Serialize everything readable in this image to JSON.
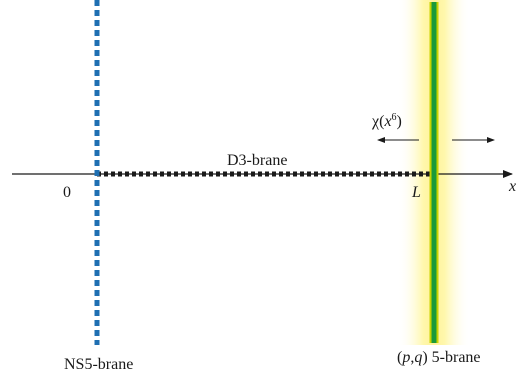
{
  "labels": {
    "ns5_brane": "NS5-brane",
    "pq_brane_paren_open": "(",
    "pq_brane_p": "p",
    "pq_brane_comma": ",",
    "pq_brane_q": "q",
    "pq_brane_rest": ") 5-brane",
    "d3_brane": "D3-brane",
    "origin": "0",
    "length": "L",
    "axis": "x",
    "chi_symbol": "χ(",
    "chi_arg_base": "x",
    "chi_arg_exp": "6",
    "chi_close": ")"
  },
  "colors": {
    "ns5_dash": "#1f6fb2",
    "pq_core": "#1a9a3a",
    "pq_edge": "#c9d400",
    "pq_glow": "#fff7a8",
    "d3_dash": "#1a1a1a",
    "axis": "#1a1a1a"
  }
}
